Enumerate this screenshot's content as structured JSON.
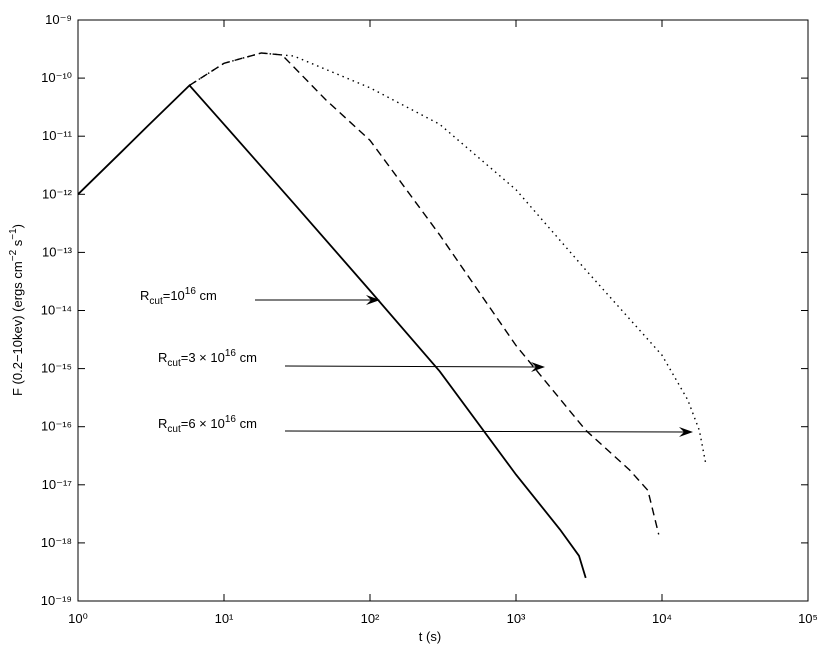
{
  "chart_data": {
    "type": "line",
    "xlabel": "t  (s)",
    "ylabel": {
      "main": "F (0.2−10kev) (ergs cm",
      "sup1": "−2",
      "mid": " s",
      "sup2": "−1",
      "end": ")"
    },
    "xscale": "log",
    "yscale": "log",
    "xlim": [
      1,
      100000
    ],
    "ylim": [
      1e-19,
      1e-09
    ],
    "xticks": [
      {
        "value": 1,
        "label": "10⁰"
      },
      {
        "value": 10,
        "label": "10¹"
      },
      {
        "value": 100,
        "label": "10²"
      },
      {
        "value": 1000,
        "label": "10³"
      },
      {
        "value": 10000,
        "label": "10⁴"
      },
      {
        "value": 100000,
        "label": "10⁵"
      }
    ],
    "yticks": [
      {
        "value": 1e-19,
        "label": "10⁻¹⁹"
      },
      {
        "value": 1e-18,
        "label": "10⁻¹⁸"
      },
      {
        "value": 1e-17,
        "label": "10⁻¹⁷"
      },
      {
        "value": 1e-16,
        "label": "10⁻¹⁶"
      },
      {
        "value": 1e-15,
        "label": "10⁻¹⁵"
      },
      {
        "value": 1e-14,
        "label": "10⁻¹⁴"
      },
      {
        "value": 1e-13,
        "label": "10⁻¹³"
      },
      {
        "value": 1e-12,
        "label": "10⁻¹²"
      },
      {
        "value": 1e-11,
        "label": "10⁻¹¹"
      },
      {
        "value": 1e-10,
        "label": "10⁻¹⁰"
      },
      {
        "value": 1e-09,
        "label": "10⁻⁹"
      }
    ],
    "series": [
      {
        "color": "#000000",
        "linestyle": "solid",
        "x": [
          1,
          2,
          3,
          5.8,
          10,
          30,
          100,
          300,
          1000,
          2000,
          2700,
          3000
        ],
        "values": [
          1e-12,
          5.5e-12,
          1.5e-11,
          7.5e-11,
          1.6e-11,
          7e-13,
          2.2e-14,
          9e-16,
          1.5e-17,
          1.7e-18,
          6e-19,
          2.5e-19
        ]
      },
      {
        "color": "#000000",
        "linestyle": "dashed",
        "x": [
          5.8,
          10,
          18,
          25,
          50,
          100,
          300,
          1000,
          3000,
          6000,
          8000,
          9500
        ],
        "values": [
          7.5e-11,
          1.8e-10,
          2.7e-10,
          2.5e-10,
          4.2e-11,
          8.5e-12,
          2e-13,
          2.5e-15,
          8.7e-17,
          1.8e-17,
          8e-18,
          1.4e-18
        ]
      },
      {
        "color": "#000000",
        "linestyle": "dotted",
        "x": [
          5.8,
          10,
          18,
          30,
          100,
          300,
          1000,
          3000,
          10000,
          15000,
          18000,
          20000
        ],
        "values": [
          7.5e-11,
          1.8e-10,
          2.7e-10,
          2.4e-10,
          6.8e-11,
          1.6e-11,
          1.2e-12,
          5e-14,
          1.7e-15,
          2.9e-16,
          8.7e-17,
          2.2e-17
        ]
      }
    ],
    "annotations": [
      {
        "base": "R",
        "sub": "cut",
        "pre": "=10",
        "sup": "16",
        "post": " cm"
      },
      {
        "base": "R",
        "sub": "cut",
        "pre": "=3 × 10",
        "sup": "16",
        "post": " cm"
      },
      {
        "base": "R",
        "sub": "cut",
        "pre": "=6 × 10",
        "sup": "16",
        "post": " cm"
      }
    ]
  }
}
